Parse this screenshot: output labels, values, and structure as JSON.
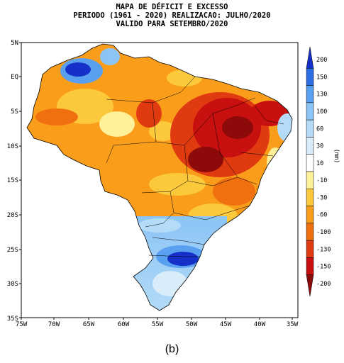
{
  "title_lines": [
    "MAPA DE DÉFICIT E EXCESSO",
    "PERIODO (1961 - 2020) REALIZACAO: JULHO/2020",
    "VALIDO PARA SETEMBRO/2020"
  ],
  "lat_labels": [
    "5N",
    "EQ",
    "5S",
    "10S",
    "15S",
    "20S",
    "25S",
    "30S",
    "35S"
  ],
  "lon_labels": [
    "75W",
    "70W",
    "65W",
    "60W",
    "55W",
    "50W",
    "45W",
    "40W",
    "35W"
  ],
  "colorbar": {
    "unit": "(mm)",
    "ticks": [
      "200",
      "150",
      "130",
      "100",
      "60",
      "30",
      "10",
      "-10",
      "-30",
      "-60",
      "-100",
      "-130",
      "-150",
      "-200"
    ],
    "colors": [
      "#1530c8",
      "#2d6ee6",
      "#5aa0f0",
      "#8cc4f5",
      "#b4dcf8",
      "#d8ecfa",
      "#ffffff",
      "#fff09a",
      "#fcc83c",
      "#f99d1a",
      "#f07010",
      "#e03a10",
      "#c81010",
      "#8c0a0a"
    ]
  },
  "caption": "(b)"
}
